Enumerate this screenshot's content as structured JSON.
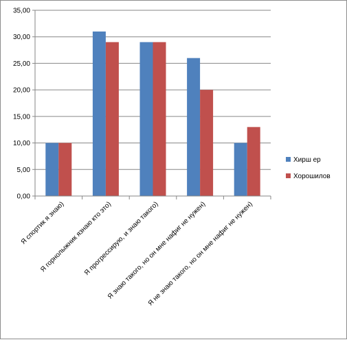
{
  "chart_data": {
    "type": "bar",
    "categories": [
      "Я спортик я знаю)",
      "Я горнолыжник язнаю кто это)",
      "Я прогрессирую, и знаю такого)",
      "Я знаю такого, но он мне нафиг не нужен)",
      "Я не знаю такого, но он мне нафиг не нужен)"
    ],
    "series": [
      {
        "name": "Хирш ер",
        "color": "#4F81BD",
        "values": [
          10,
          31,
          29,
          26,
          10
        ]
      },
      {
        "name": "Хорошилов",
        "color": "#C0504D",
        "values": [
          10,
          29,
          29,
          20,
          13
        ]
      }
    ],
    "y_ticks": [
      "0,00",
      "5,00",
      "10,00",
      "15,00",
      "20,00",
      "25,00",
      "30,00",
      "35,00"
    ],
    "ylim": [
      0,
      35
    ],
    "y_step": 5,
    "grid": true,
    "legend_position": "right",
    "title": "",
    "xlabel": "",
    "ylabel": ""
  }
}
